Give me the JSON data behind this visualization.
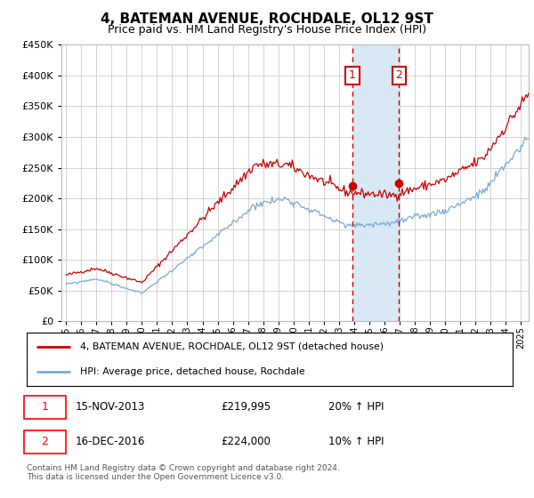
{
  "title": "4, BATEMAN AVENUE, ROCHDALE, OL12 9ST",
  "subtitle": "Price paid vs. HM Land Registry's House Price Index (HPI)",
  "title_fontsize": 11,
  "subtitle_fontsize": 9,
  "ylim": [
    0,
    450000
  ],
  "yticks": [
    0,
    50000,
    100000,
    150000,
    200000,
    250000,
    300000,
    350000,
    400000,
    450000
  ],
  "xlim_start": 1994.7,
  "xlim_end": 2025.5,
  "hpi_color": "#7aaad4",
  "price_color": "#cc0000",
  "sale1_year": 2013.88,
  "sale1_price": 219995,
  "sale1_label": "1",
  "sale1_date": "15-NOV-2013",
  "sale1_pct": "20%",
  "sale2_year": 2016.96,
  "sale2_price": 224000,
  "sale2_label": "2",
  "sale2_date": "16-DEC-2016",
  "sale2_pct": "10%",
  "legend_line1": "4, BATEMAN AVENUE, ROCHDALE, OL12 9ST (detached house)",
  "legend_line2": "HPI: Average price, detached house, Rochdale",
  "footnote": "Contains HM Land Registry data © Crown copyright and database right 2024.\nThis data is licensed under the Open Government Licence v3.0.",
  "background_color": "#ffffff",
  "grid_color": "#cccccc",
  "highlight_color": "#d8e8f5"
}
